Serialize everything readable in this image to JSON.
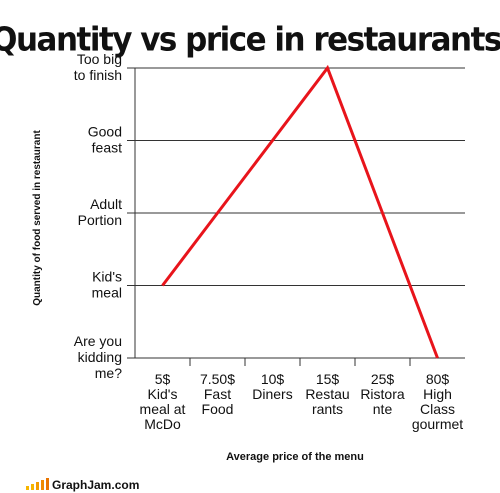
{
  "chart_data": {
    "type": "line",
    "title": "Quantity vs price in restaurants",
    "x_label": "Average price of the menu",
    "y_label": "Quantity of food served in restaurant",
    "categories": [
      "5$\nKid's\nmeal at\nMcDo",
      "7.50$\nFast\nFood",
      "10$\nDiners",
      "15$\nRestau\nrants",
      "25$\nRistora\nnte",
      "80$\nHigh\nClass\ngourmet"
    ],
    "series": [
      {
        "name": "Quantity",
        "color": "#e8141b",
        "values": [
          1,
          2,
          3,
          4,
          2,
          0
        ]
      }
    ],
    "ylim": [
      0,
      4
    ],
    "yticks": [
      {
        "value": 0,
        "label": "Are you\nkidding\nme?"
      },
      {
        "value": 1,
        "label": "Kid's\nmeal"
      },
      {
        "value": 2,
        "label": "Adult\nPortion"
      },
      {
        "value": 3,
        "label": "Good\nfeast"
      },
      {
        "value": 4,
        "label": "Too big\nto finish"
      }
    ],
    "grid": true,
    "source": "GraphJam.com"
  }
}
